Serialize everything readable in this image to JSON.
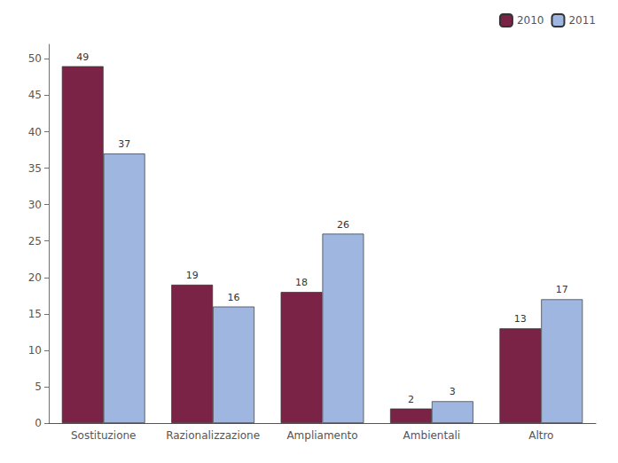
{
  "chart_data": {
    "type": "bar",
    "categories": [
      "Sostituzione",
      "Razionalizzazione",
      "Ampliamento",
      "Ambientali",
      "Altro"
    ],
    "series": [
      {
        "name": "2010",
        "color": "#7B2346",
        "values": [
          49,
          19,
          18,
          2,
          13
        ]
      },
      {
        "name": "2011",
        "color": "#9EB6E0",
        "values": [
          37,
          16,
          26,
          3,
          17
        ]
      }
    ],
    "ylim": [
      0,
      52
    ],
    "yticks": [
      0,
      5,
      10,
      15,
      20,
      25,
      30,
      35,
      40,
      45,
      50
    ],
    "grid": false,
    "legend": "upper right",
    "data_labels": true
  }
}
